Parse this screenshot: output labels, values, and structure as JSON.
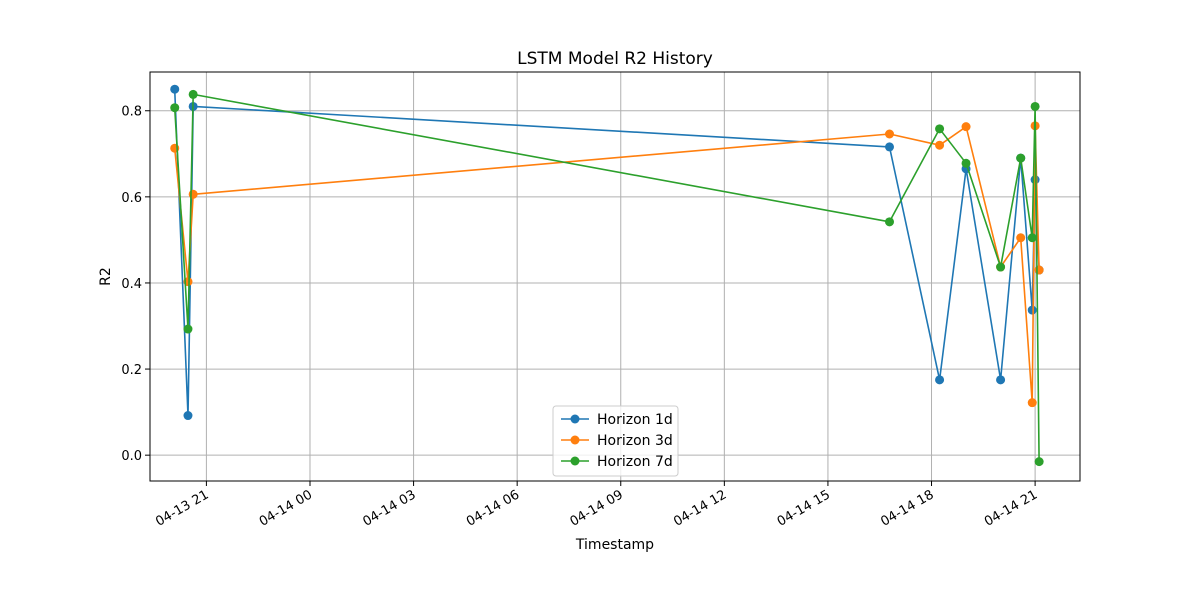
{
  "chart_data": {
    "type": "line",
    "title": "LSTM Model R2 History",
    "xlabel": "Timestamp",
    "ylabel": "R2",
    "x_ticks": [
      "04-13 21",
      "04-14 00",
      "04-14 03",
      "04-14 06",
      "04-14 09",
      "04-14 12",
      "04-14 15",
      "04-14 18",
      "04-14 21"
    ],
    "y_ticks": [
      "0.0",
      "0.2",
      "0.4",
      "0.6",
      "0.8"
    ],
    "xlim": [
      "2025-04-13 19:22",
      "2025-04-14 22:18"
    ],
    "ylim": [
      -0.06,
      0.89
    ],
    "grid": true,
    "legend_position": "lower center",
    "x": [
      "2025-04-13 20:05",
      "2025-04-13 20:28",
      "2025-04-13 20:37",
      "2025-04-14 16:47",
      "2025-04-14 18:14",
      "2025-04-14 19:00",
      "2025-04-14 20:00",
      "2025-04-14 20:35",
      "2025-04-14 20:55",
      "2025-04-14 21:00",
      "2025-04-14 21:07"
    ],
    "series": [
      {
        "name": "Horizon 1d",
        "color": "#1f77b4",
        "values": [
          0.85,
          0.092,
          0.81,
          0.716,
          0.175,
          0.665,
          0.175,
          0.69,
          0.337,
          0.64,
          0.43
        ]
      },
      {
        "name": "Horizon 3d",
        "color": "#ff7f0e",
        "values": [
          0.713,
          0.403,
          0.606,
          0.746,
          0.72,
          0.763,
          0.437,
          0.505,
          0.122,
          0.765,
          0.43
        ]
      },
      {
        "name": "Horizon 7d",
        "color": "#2ca02c",
        "values": [
          0.807,
          0.293,
          0.838,
          0.542,
          0.758,
          0.678,
          0.437,
          0.69,
          0.505,
          0.81,
          -0.015
        ]
      }
    ]
  }
}
